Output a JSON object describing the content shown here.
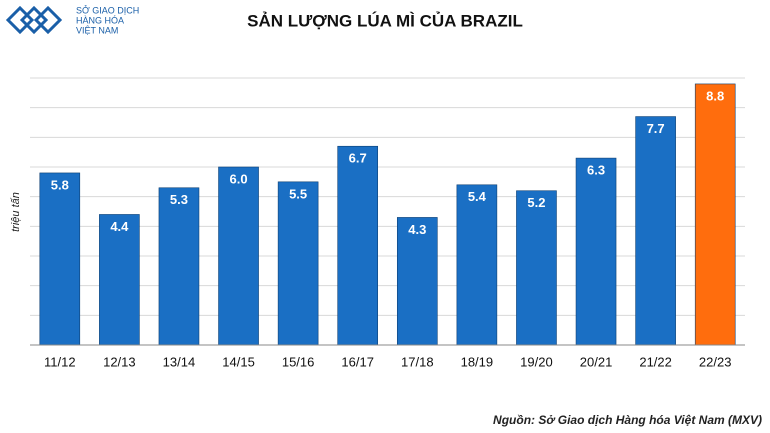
{
  "logo": {
    "lines": [
      "SỞ GIAO DỊCH",
      "HÀNG HÓA",
      "VIỆT NAM"
    ]
  },
  "chart_data": {
    "type": "bar",
    "title": "SẢN LƯỢNG LÚA MÌ CỦA BRAZIL",
    "y_label": "triệu tấn",
    "categories": [
      "11/12",
      "12/13",
      "13/14",
      "14/15",
      "15/16",
      "16/17",
      "17/18",
      "18/19",
      "19/20",
      "20/21",
      "21/22",
      "22/23"
    ],
    "values": [
      5.8,
      4.4,
      5.3,
      6.0,
      5.5,
      6.7,
      4.3,
      5.4,
      5.2,
      6.3,
      7.7,
      8.8
    ],
    "value_labels": [
      "5.8",
      "4.4",
      "5.3",
      "6.0",
      "5.5",
      "6.7",
      "4.3",
      "5.4",
      "5.2",
      "6.3",
      "7.7",
      "8.8"
    ],
    "colors": [
      "#1a6fc4",
      "#1a6fc4",
      "#1a6fc4",
      "#1a6fc4",
      "#1a6fc4",
      "#1a6fc4",
      "#1a6fc4",
      "#1a6fc4",
      "#1a6fc4",
      "#1a6fc4",
      "#1a6fc4",
      "#ff6d0d"
    ],
    "ylim": [
      0,
      9
    ],
    "yticks": [
      0,
      1,
      2,
      3,
      4,
      5,
      6,
      7,
      8,
      9
    ],
    "grid": true,
    "source": "Nguồn: Sở Giao dịch Hàng hóa Việt Nam (MXV)"
  }
}
